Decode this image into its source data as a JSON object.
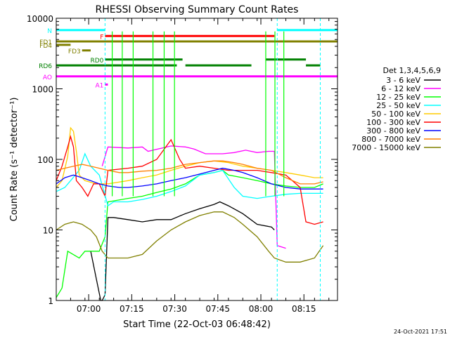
{
  "chart_data": {
    "type": "line",
    "title": "RHESSI Observing Summary Count Rates",
    "xlabel": "Start Time (22-Oct-03 06:48:42)",
    "ylabel": "Count Rate (s⁻¹ detector⁻¹)",
    "yscale": "log",
    "ylim": [
      1,
      10000
    ],
    "xlim_minutes": [
      0,
      98
    ],
    "x_ticks": [
      {
        "m": 11.3,
        "label": "07:00"
      },
      {
        "m": 26.3,
        "label": "07:15"
      },
      {
        "m": 41.3,
        "label": "07:30"
      },
      {
        "m": 56.3,
        "label": "07:45"
      },
      {
        "m": 71.3,
        "label": "08:00"
      },
      {
        "m": 86.3,
        "label": "08:15"
      }
    ],
    "y_ticks": [
      {
        "v": 1,
        "label": "1"
      },
      {
        "v": 10,
        "label": "10"
      },
      {
        "v": 100,
        "label": "100"
      },
      {
        "v": 1000,
        "label": "1000"
      },
      {
        "v": 10000,
        "label": "10000"
      }
    ],
    "legend_title": "Det 1,3,4,5,6,9",
    "legend_position": "right",
    "series": [
      {
        "name": "3 - 6 keV",
        "color": "#000000",
        "points": [
          [
            12,
            5
          ],
          [
            14,
            2
          ],
          [
            15.5,
            1
          ],
          [
            16,
            1
          ],
          [
            17,
            1.2
          ],
          [
            18,
            15
          ],
          [
            20,
            15
          ],
          [
            25,
            14
          ],
          [
            30,
            13
          ],
          [
            35,
            14
          ],
          [
            40,
            14
          ],
          [
            45,
            17
          ],
          [
            50,
            20
          ],
          [
            55,
            23
          ],
          [
            57,
            25
          ],
          [
            60,
            22
          ],
          [
            65,
            17
          ],
          [
            70,
            12
          ],
          [
            75,
            11
          ],
          [
            76,
            10
          ]
        ]
      },
      {
        "name": "6 - 12 keV",
        "color": "#ff00ff",
        "points": [
          [
            16,
            80
          ],
          [
            18,
            150
          ],
          [
            25,
            145
          ],
          [
            30,
            150
          ],
          [
            32,
            130
          ],
          [
            40,
            155
          ],
          [
            45,
            150
          ],
          [
            48,
            140
          ],
          [
            52,
            120
          ],
          [
            58,
            120
          ],
          [
            62,
            125
          ],
          [
            66,
            135
          ],
          [
            70,
            125
          ],
          [
            74,
            130
          ],
          [
            76,
            130
          ],
          [
            77,
            6
          ],
          [
            80,
            5.5
          ]
        ]
      },
      {
        "name": "12 - 25 keV",
        "color": "#00ff00",
        "points": [
          [
            0,
            1.1
          ],
          [
            2,
            1.5
          ],
          [
            4,
            5
          ],
          [
            8,
            4
          ],
          [
            10,
            5
          ],
          [
            12,
            5
          ],
          [
            15,
            5
          ],
          [
            17,
            8
          ],
          [
            18,
            25
          ],
          [
            25,
            28
          ],
          [
            30,
            30
          ],
          [
            35,
            34
          ],
          [
            40,
            38
          ],
          [
            45,
            45
          ],
          [
            50,
            60
          ],
          [
            55,
            65
          ],
          [
            58,
            70
          ],
          [
            60,
            60
          ],
          [
            65,
            55
          ],
          [
            70,
            50
          ],
          [
            75,
            45
          ],
          [
            80,
            42
          ],
          [
            85,
            40
          ],
          [
            90,
            40
          ],
          [
            93,
            45
          ]
        ]
      },
      {
        "name": "25 - 50 keV",
        "color": "#00ffff",
        "points": [
          [
            0,
            35
          ],
          [
            3,
            40
          ],
          [
            5,
            50
          ],
          [
            8,
            70
          ],
          [
            10,
            120
          ],
          [
            12,
            80
          ],
          [
            15,
            60
          ],
          [
            18,
            22
          ],
          [
            20,
            25
          ],
          [
            25,
            25
          ],
          [
            30,
            27
          ],
          [
            35,
            30
          ],
          [
            40,
            35
          ],
          [
            45,
            42
          ],
          [
            50,
            60
          ],
          [
            55,
            65
          ],
          [
            58,
            70
          ],
          [
            62,
            40
          ],
          [
            65,
            30
          ],
          [
            70,
            28
          ],
          [
            75,
            30
          ],
          [
            80,
            32
          ],
          [
            85,
            33
          ],
          [
            90,
            33
          ],
          [
            93,
            33
          ]
        ]
      },
      {
        "name": "50 - 100 keV",
        "color": "#ffcc00",
        "points": [
          [
            0,
            40
          ],
          [
            2,
            50
          ],
          [
            4,
            110
          ],
          [
            5,
            280
          ],
          [
            6,
            250
          ],
          [
            7,
            130
          ],
          [
            8,
            60
          ],
          [
            10,
            50
          ],
          [
            14,
            45
          ],
          [
            18,
            45
          ],
          [
            25,
            50
          ],
          [
            30,
            55
          ],
          [
            35,
            60
          ],
          [
            40,
            70
          ],
          [
            45,
            80
          ],
          [
            50,
            90
          ],
          [
            55,
            95
          ],
          [
            60,
            90
          ],
          [
            65,
            80
          ],
          [
            70,
            75
          ],
          [
            75,
            70
          ],
          [
            80,
            65
          ],
          [
            85,
            60
          ],
          [
            90,
            55
          ],
          [
            93,
            55
          ]
        ]
      },
      {
        "name": "100 - 300 keV",
        "color": "#ff0000",
        "points": [
          [
            0,
            50
          ],
          [
            2,
            80
          ],
          [
            4,
            150
          ],
          [
            5,
            210
          ],
          [
            6,
            150
          ],
          [
            7,
            50
          ],
          [
            9,
            40
          ],
          [
            11,
            30
          ],
          [
            13,
            45
          ],
          [
            15,
            45
          ],
          [
            17,
            30
          ],
          [
            18,
            70
          ],
          [
            25,
            75
          ],
          [
            30,
            80
          ],
          [
            35,
            100
          ],
          [
            40,
            190
          ],
          [
            43,
            100
          ],
          [
            45,
            75
          ],
          [
            50,
            80
          ],
          [
            55,
            75
          ],
          [
            60,
            70
          ],
          [
            65,
            70
          ],
          [
            70,
            70
          ],
          [
            75,
            65
          ],
          [
            80,
            60
          ],
          [
            85,
            40
          ],
          [
            87,
            13
          ],
          [
            90,
            12
          ],
          [
            93,
            13
          ]
        ]
      },
      {
        "name": "300 - 800 keV",
        "color": "#0000ff",
        "points": [
          [
            0,
            45
          ],
          [
            3,
            55
          ],
          [
            6,
            60
          ],
          [
            9,
            55
          ],
          [
            12,
            50
          ],
          [
            15,
            45
          ],
          [
            18,
            42
          ],
          [
            22,
            40
          ],
          [
            25,
            40
          ],
          [
            30,
            42
          ],
          [
            35,
            45
          ],
          [
            40,
            50
          ],
          [
            45,
            55
          ],
          [
            50,
            62
          ],
          [
            55,
            70
          ],
          [
            58,
            75
          ],
          [
            62,
            70
          ],
          [
            65,
            65
          ],
          [
            70,
            55
          ],
          [
            75,
            45
          ],
          [
            80,
            40
          ],
          [
            85,
            38
          ],
          [
            90,
            38
          ],
          [
            93,
            38
          ]
        ]
      },
      {
        "name": "800 - 7000 keV",
        "color": "#ff7f00",
        "points": [
          [
            0,
            70
          ],
          [
            3,
            75
          ],
          [
            6,
            80
          ],
          [
            9,
            85
          ],
          [
            12,
            80
          ],
          [
            15,
            75
          ],
          [
            18,
            70
          ],
          [
            22,
            65
          ],
          [
            25,
            65
          ],
          [
            30,
            68
          ],
          [
            35,
            70
          ],
          [
            40,
            75
          ],
          [
            45,
            85
          ],
          [
            50,
            90
          ],
          [
            55,
            95
          ],
          [
            58,
            95
          ],
          [
            62,
            90
          ],
          [
            65,
            85
          ],
          [
            70,
            75
          ],
          [
            75,
            70
          ],
          [
            80,
            55
          ],
          [
            85,
            45
          ],
          [
            90,
            45
          ],
          [
            93,
            48
          ]
        ]
      },
      {
        "name": "7000 - 15000 keV",
        "color": "#808000",
        "points": [
          [
            0,
            10
          ],
          [
            3,
            12
          ],
          [
            6,
            13
          ],
          [
            9,
            12
          ],
          [
            12,
            10
          ],
          [
            14,
            8
          ],
          [
            16,
            5
          ],
          [
            18,
            4
          ],
          [
            22,
            4
          ],
          [
            25,
            4
          ],
          [
            30,
            4.5
          ],
          [
            35,
            7
          ],
          [
            40,
            10
          ],
          [
            45,
            13
          ],
          [
            50,
            16
          ],
          [
            55,
            18
          ],
          [
            58,
            18
          ],
          [
            62,
            15
          ],
          [
            65,
            12
          ],
          [
            70,
            8
          ],
          [
            74,
            5
          ],
          [
            76,
            4
          ],
          [
            80,
            3.5
          ],
          [
            85,
            3.5
          ],
          [
            90,
            4
          ],
          [
            93,
            6
          ]
        ]
      }
    ],
    "spikes": [
      {
        "x": 19.5,
        "color": "#00ff00"
      },
      {
        "x": 23.0,
        "color": "#00ff00"
      },
      {
        "x": 26.8,
        "color": "#00ff00"
      },
      {
        "x": 33.7,
        "color": "#00ff00"
      },
      {
        "x": 37.6,
        "color": "#00ff00"
      },
      {
        "x": 41.2,
        "color": "#00ff00"
      },
      {
        "x": 73.0,
        "color": "#00ff00"
      },
      {
        "x": 76.2,
        "color": "#00ff00"
      },
      {
        "x": 79.3,
        "color": "#00ff00"
      }
    ],
    "flags": [
      {
        "label": "N",
        "value": 6800,
        "x_start": 0,
        "x_end": 17,
        "color": "#00ffff"
      },
      {
        "label": "",
        "value": 6800,
        "x_start": 77,
        "x_end": 98,
        "color": "#00ffff"
      },
      {
        "label": "F",
        "value": 5600,
        "x_start": 17,
        "x_end": 76,
        "color": "#ff0000"
      },
      {
        "label": "FD1",
        "value": 4700,
        "x_start": 0,
        "x_end": 98,
        "color": "#808000"
      },
      {
        "label": "FD3",
        "value": 3500,
        "x_start": 9,
        "x_end": 12,
        "color": "#808000"
      },
      {
        "label": "FD4",
        "value": 4200,
        "x_start": 0,
        "x_end": 5,
        "color": "#808000"
      },
      {
        "label": "RD0",
        "value": 2600,
        "x_start": 17,
        "x_end": 44,
        "color": "#008000"
      },
      {
        "label": "",
        "value": 2600,
        "x_start": 73,
        "x_end": 87,
        "color": "#008000"
      },
      {
        "label": "RD6",
        "value": 2150,
        "x_start": 0,
        "x_end": 42,
        "color": "#008000"
      },
      {
        "label": "",
        "value": 2150,
        "x_start": 45,
        "x_end": 68,
        "color": "#008000"
      },
      {
        "label": "",
        "value": 2150,
        "x_start": 87,
        "x_end": 92,
        "color": "#008000"
      },
      {
        "label": "AO",
        "value": 1500,
        "x_start": 0,
        "x_end": 98,
        "color": "#ff00ff"
      },
      {
        "label": "A1",
        "value": 1150,
        "x_start": 17,
        "x_end": 18,
        "color": "#ff00ff"
      }
    ],
    "night_markers": [
      {
        "x": 17.0,
        "color": "#00ffff"
      },
      {
        "x": 77.0,
        "color": "#00ffff"
      },
      {
        "x": 92.0,
        "color": "#00ffff"
      }
    ],
    "timestamp": "24-Oct-2021 17:51"
  }
}
